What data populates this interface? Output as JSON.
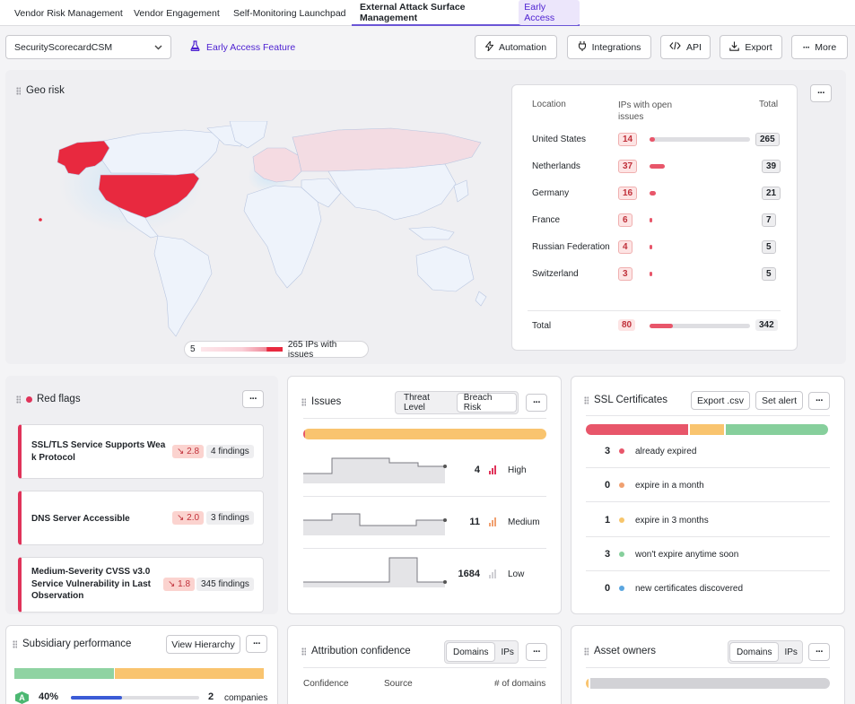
{
  "tabs": [
    {
      "label": "Vendor Risk Management"
    },
    {
      "label": "Vendor Engagement"
    },
    {
      "label": "Self-Monitoring Launchpad"
    },
    {
      "label": "External Attack Surface Management",
      "badge": "Early Access"
    }
  ],
  "toolbar": {
    "company": "SecurityScorecardCSM",
    "early_access": "Early Access Feature",
    "automation": "Automation",
    "integrations": "Integrations",
    "api": "API",
    "export": "Export",
    "more": "More"
  },
  "geo": {
    "title": "Geo risk",
    "legend_min": "5",
    "legend_max": "265 IPs with issues",
    "headers": {
      "location": "Location",
      "ips": "IPs with open issues",
      "total": "Total"
    },
    "rows": [
      {
        "location": "United States",
        "ips": "14",
        "total": "265",
        "fraction": 0.05
      },
      {
        "location": "Netherlands",
        "ips": "37",
        "total": "39",
        "fraction": 0.15
      },
      {
        "location": "Germany",
        "ips": "16",
        "total": "21",
        "fraction": 0.06
      },
      {
        "location": "France",
        "ips": "6",
        "total": "7",
        "fraction": 0.02
      },
      {
        "location": "Russian Federation",
        "ips": "4",
        "total": "5",
        "fraction": 0.015
      },
      {
        "location": "Switzerland",
        "ips": "3",
        "total": "5",
        "fraction": 0.012
      }
    ],
    "total_row": {
      "label": "Total",
      "ips": "80",
      "total": "342",
      "fraction": 0.23
    }
  },
  "redflags": {
    "title": "Red flags",
    "items": [
      {
        "line1": "SSL/TLS Service Supports Wea",
        "line2": "k Protocol",
        "line3": "",
        "trend": "↘ 2.8",
        "findings": "4 findings"
      },
      {
        "line1": "DNS Server Accessible",
        "line2": "",
        "line3": "",
        "trend": "↘ 2.0",
        "findings": "3 findings"
      },
      {
        "line1": "Medium-Severity CVSS v3.0",
        "line2": "Service Vulnerability in Last",
        "line3": "Observation",
        "trend": "↘ 1.8",
        "findings": "345 findings"
      }
    ]
  },
  "issues": {
    "title": "Issues",
    "seg": [
      "Threat Level",
      "Breach Risk"
    ],
    "rows": [
      {
        "count": "4",
        "level": "High"
      },
      {
        "count": "11",
        "level": "Medium"
      },
      {
        "count": "1684",
        "level": "Low"
      }
    ]
  },
  "ssl": {
    "title": "SSL Certificates",
    "export": "Export .csv",
    "alert": "Set alert",
    "rows": [
      {
        "count": "3",
        "label": "already expired",
        "color": "#e8566a"
      },
      {
        "count": "0",
        "label": "expire in a month",
        "color": "#f0a070"
      },
      {
        "count": "1",
        "label": "expire in 3 months",
        "color": "#f7c56b"
      },
      {
        "count": "3",
        "label": "won't expire anytime soon",
        "color": "#86cf9c"
      },
      {
        "count": "0",
        "label": "new certificates discovered",
        "color": "#5aa6e0"
      }
    ]
  },
  "subsidiary": {
    "title": "Subsidiary performance",
    "view": "View Hierarchy",
    "grade": "A",
    "percent": "40%",
    "count": "2",
    "unit": "companies"
  },
  "attribution": {
    "title": "Attribution confidence",
    "seg": [
      "Domains",
      "IPs"
    ],
    "headers": {
      "confidence": "Confidence",
      "source": "Source",
      "domains": "# of domains"
    }
  },
  "owners": {
    "title": "Asset owners",
    "seg": [
      "Domains",
      "IPs"
    ]
  },
  "colors": {
    "accent": "#4c1fd1",
    "danger": "#e0335a",
    "warn": "#f7c56b",
    "ok": "#86cf9c"
  }
}
